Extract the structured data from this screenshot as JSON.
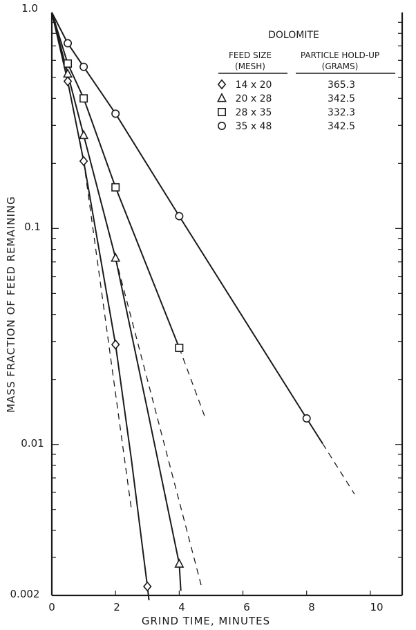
{
  "chart_data": {
    "type": "line",
    "title": "",
    "xlabel": "GRIND TIME, MINUTES",
    "ylabel": "MASS FRACTION OF FEED REMAINING",
    "xlim": [
      0,
      11
    ],
    "ylim": [
      0.002,
      1.0
    ],
    "yscale": "log",
    "grid": false,
    "x_tick_labels": [
      "0",
      "2",
      "4",
      "6",
      "8",
      "10"
    ],
    "y_tick_labels": [
      "1.0",
      "0.1",
      "0.01",
      "0.002"
    ],
    "legend": {
      "placement": "top-right",
      "title": "DOLOMITE",
      "column_headers": [
        "FEED SIZE\n(MESH)",
        "PARTICLE HOLD-UP\n(GRAMS)"
      ],
      "col1_line1": "FEED SIZE",
      "col1_line2": "(MESH)",
      "col2_line1": "PARTICLE HOLD-UP",
      "col2_line2": "(GRAMS)"
    },
    "series": [
      {
        "name": "14 x 20",
        "holdup": "365.3",
        "marker": "diamond",
        "x": [
          0.5,
          1,
          2,
          3
        ],
        "y": [
          0.48,
          0.205,
          0.029,
          0.0022
        ],
        "curve": [
          [
            0,
            1.0
          ],
          [
            0.5,
            0.48
          ],
          [
            1,
            0.205
          ],
          [
            2,
            0.029
          ],
          [
            2.5,
            0.0085
          ],
          [
            3,
            0.0022
          ],
          [
            3.05,
            0.0019
          ]
        ],
        "extrapolation": [
          [
            1,
            0.205
          ],
          [
            2.5,
            0.005
          ]
        ]
      },
      {
        "name": "20 x 28",
        "holdup": "342.5",
        "marker": "triangle",
        "x": [
          0.5,
          1,
          2,
          4
        ],
        "y": [
          0.52,
          0.27,
          0.073,
          0.0028
        ],
        "curve": [
          [
            0,
            1.0
          ],
          [
            0.5,
            0.52
          ],
          [
            1,
            0.27
          ],
          [
            2,
            0.073
          ],
          [
            3,
            0.0145
          ],
          [
            4,
            0.0028
          ],
          [
            4.05,
            0.0021
          ]
        ],
        "extrapolation": [
          [
            2,
            0.073
          ],
          [
            4.7,
            0.0022
          ]
        ]
      },
      {
        "name": "28 x 35",
        "holdup": "332.3",
        "marker": "square",
        "x": [
          0.5,
          1,
          2,
          4
        ],
        "y": [
          0.58,
          0.4,
          0.155,
          0.028
        ],
        "curve": [
          [
            0,
            1.0
          ],
          [
            0.5,
            0.58
          ],
          [
            1,
            0.4
          ],
          [
            2,
            0.155
          ],
          [
            4,
            0.028
          ]
        ],
        "extrapolation": [
          [
            4,
            0.028
          ],
          [
            4.8,
            0.0135
          ]
        ]
      },
      {
        "name": "35 x 48",
        "holdup": "342.5",
        "marker": "circle",
        "x": [
          0.5,
          1,
          2,
          4,
          8
        ],
        "y": [
          0.72,
          0.56,
          0.34,
          0.114,
          0.0132
        ],
        "curve": [
          [
            0,
            1.0
          ],
          [
            0.5,
            0.72
          ],
          [
            1,
            0.56
          ],
          [
            2,
            0.34
          ],
          [
            4,
            0.114
          ],
          [
            8,
            0.0132
          ],
          [
            8.5,
            0.0101
          ]
        ],
        "extrapolation": [
          [
            8.5,
            0.0101
          ],
          [
            9.5,
            0.0059
          ]
        ]
      }
    ]
  }
}
